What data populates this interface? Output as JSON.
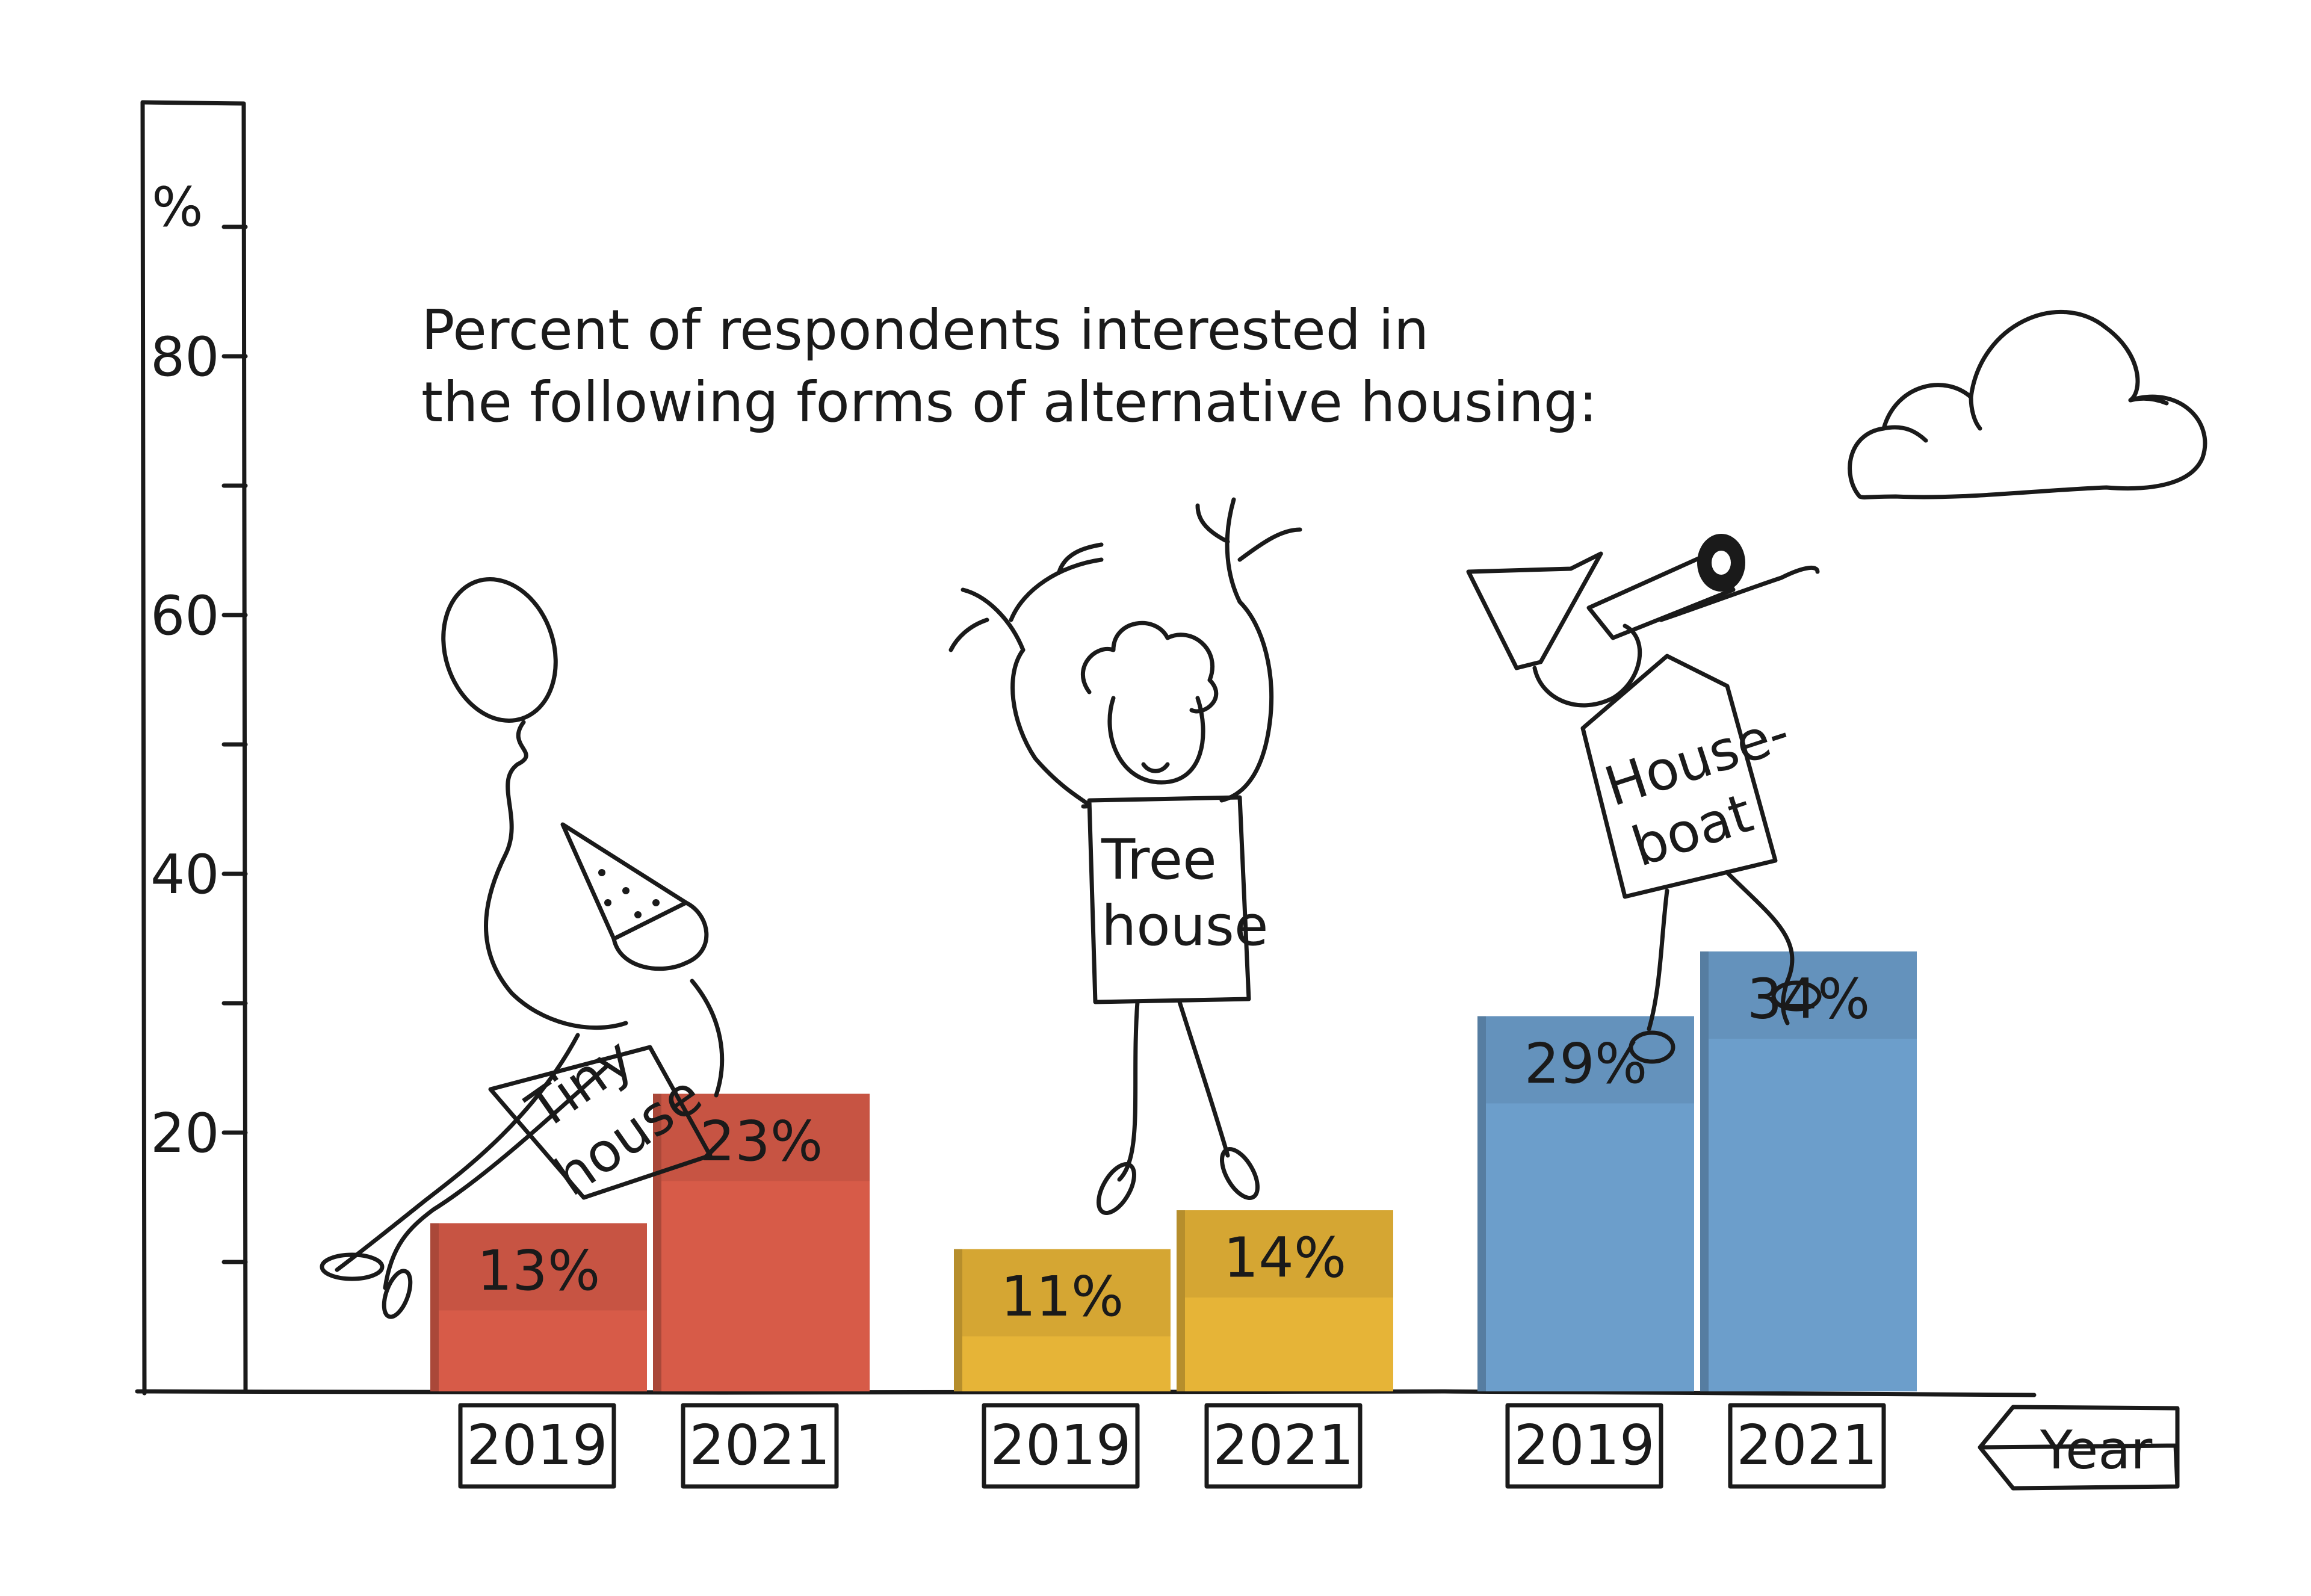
{
  "chart_data": {
    "type": "bar",
    "title": "Percent of respondents interested in the following forms of alternative housing:",
    "title_lines": [
      "Percent of respondents interested in",
      "the following forms of alternative housing:"
    ],
    "y_unit_label": "%",
    "x_axis_label": "Year",
    "ylim": [
      0,
      100
    ],
    "y_ticks": [
      20,
      40,
      60,
      80
    ],
    "grid": false,
    "groups": [
      {
        "name_lines": [
          "Tiny",
          "house"
        ],
        "color": "#e2604c",
        "bars": [
          {
            "year": "2019",
            "value": 13,
            "label": "13%"
          },
          {
            "year": "2021",
            "value": 23,
            "label": "23%"
          }
        ]
      },
      {
        "name_lines": [
          "Tree",
          "house"
        ],
        "color": "#f2bd3a",
        "bars": [
          {
            "year": "2019",
            "value": 11,
            "label": "11%"
          },
          {
            "year": "2021",
            "value": 14,
            "label": "14%"
          }
        ]
      },
      {
        "name_lines": [
          "House-",
          "boat"
        ],
        "color": "#72a6d6",
        "bars": [
          {
            "year": "2019",
            "value": 29,
            "label": "29%"
          },
          {
            "year": "2021",
            "value": 34,
            "label": "34%"
          }
        ]
      }
    ]
  },
  "icons": [
    "balloon-icon",
    "party-hat-icon",
    "branch-icon",
    "telescope-icon",
    "sailor-hat-icon",
    "cloud-icon"
  ]
}
